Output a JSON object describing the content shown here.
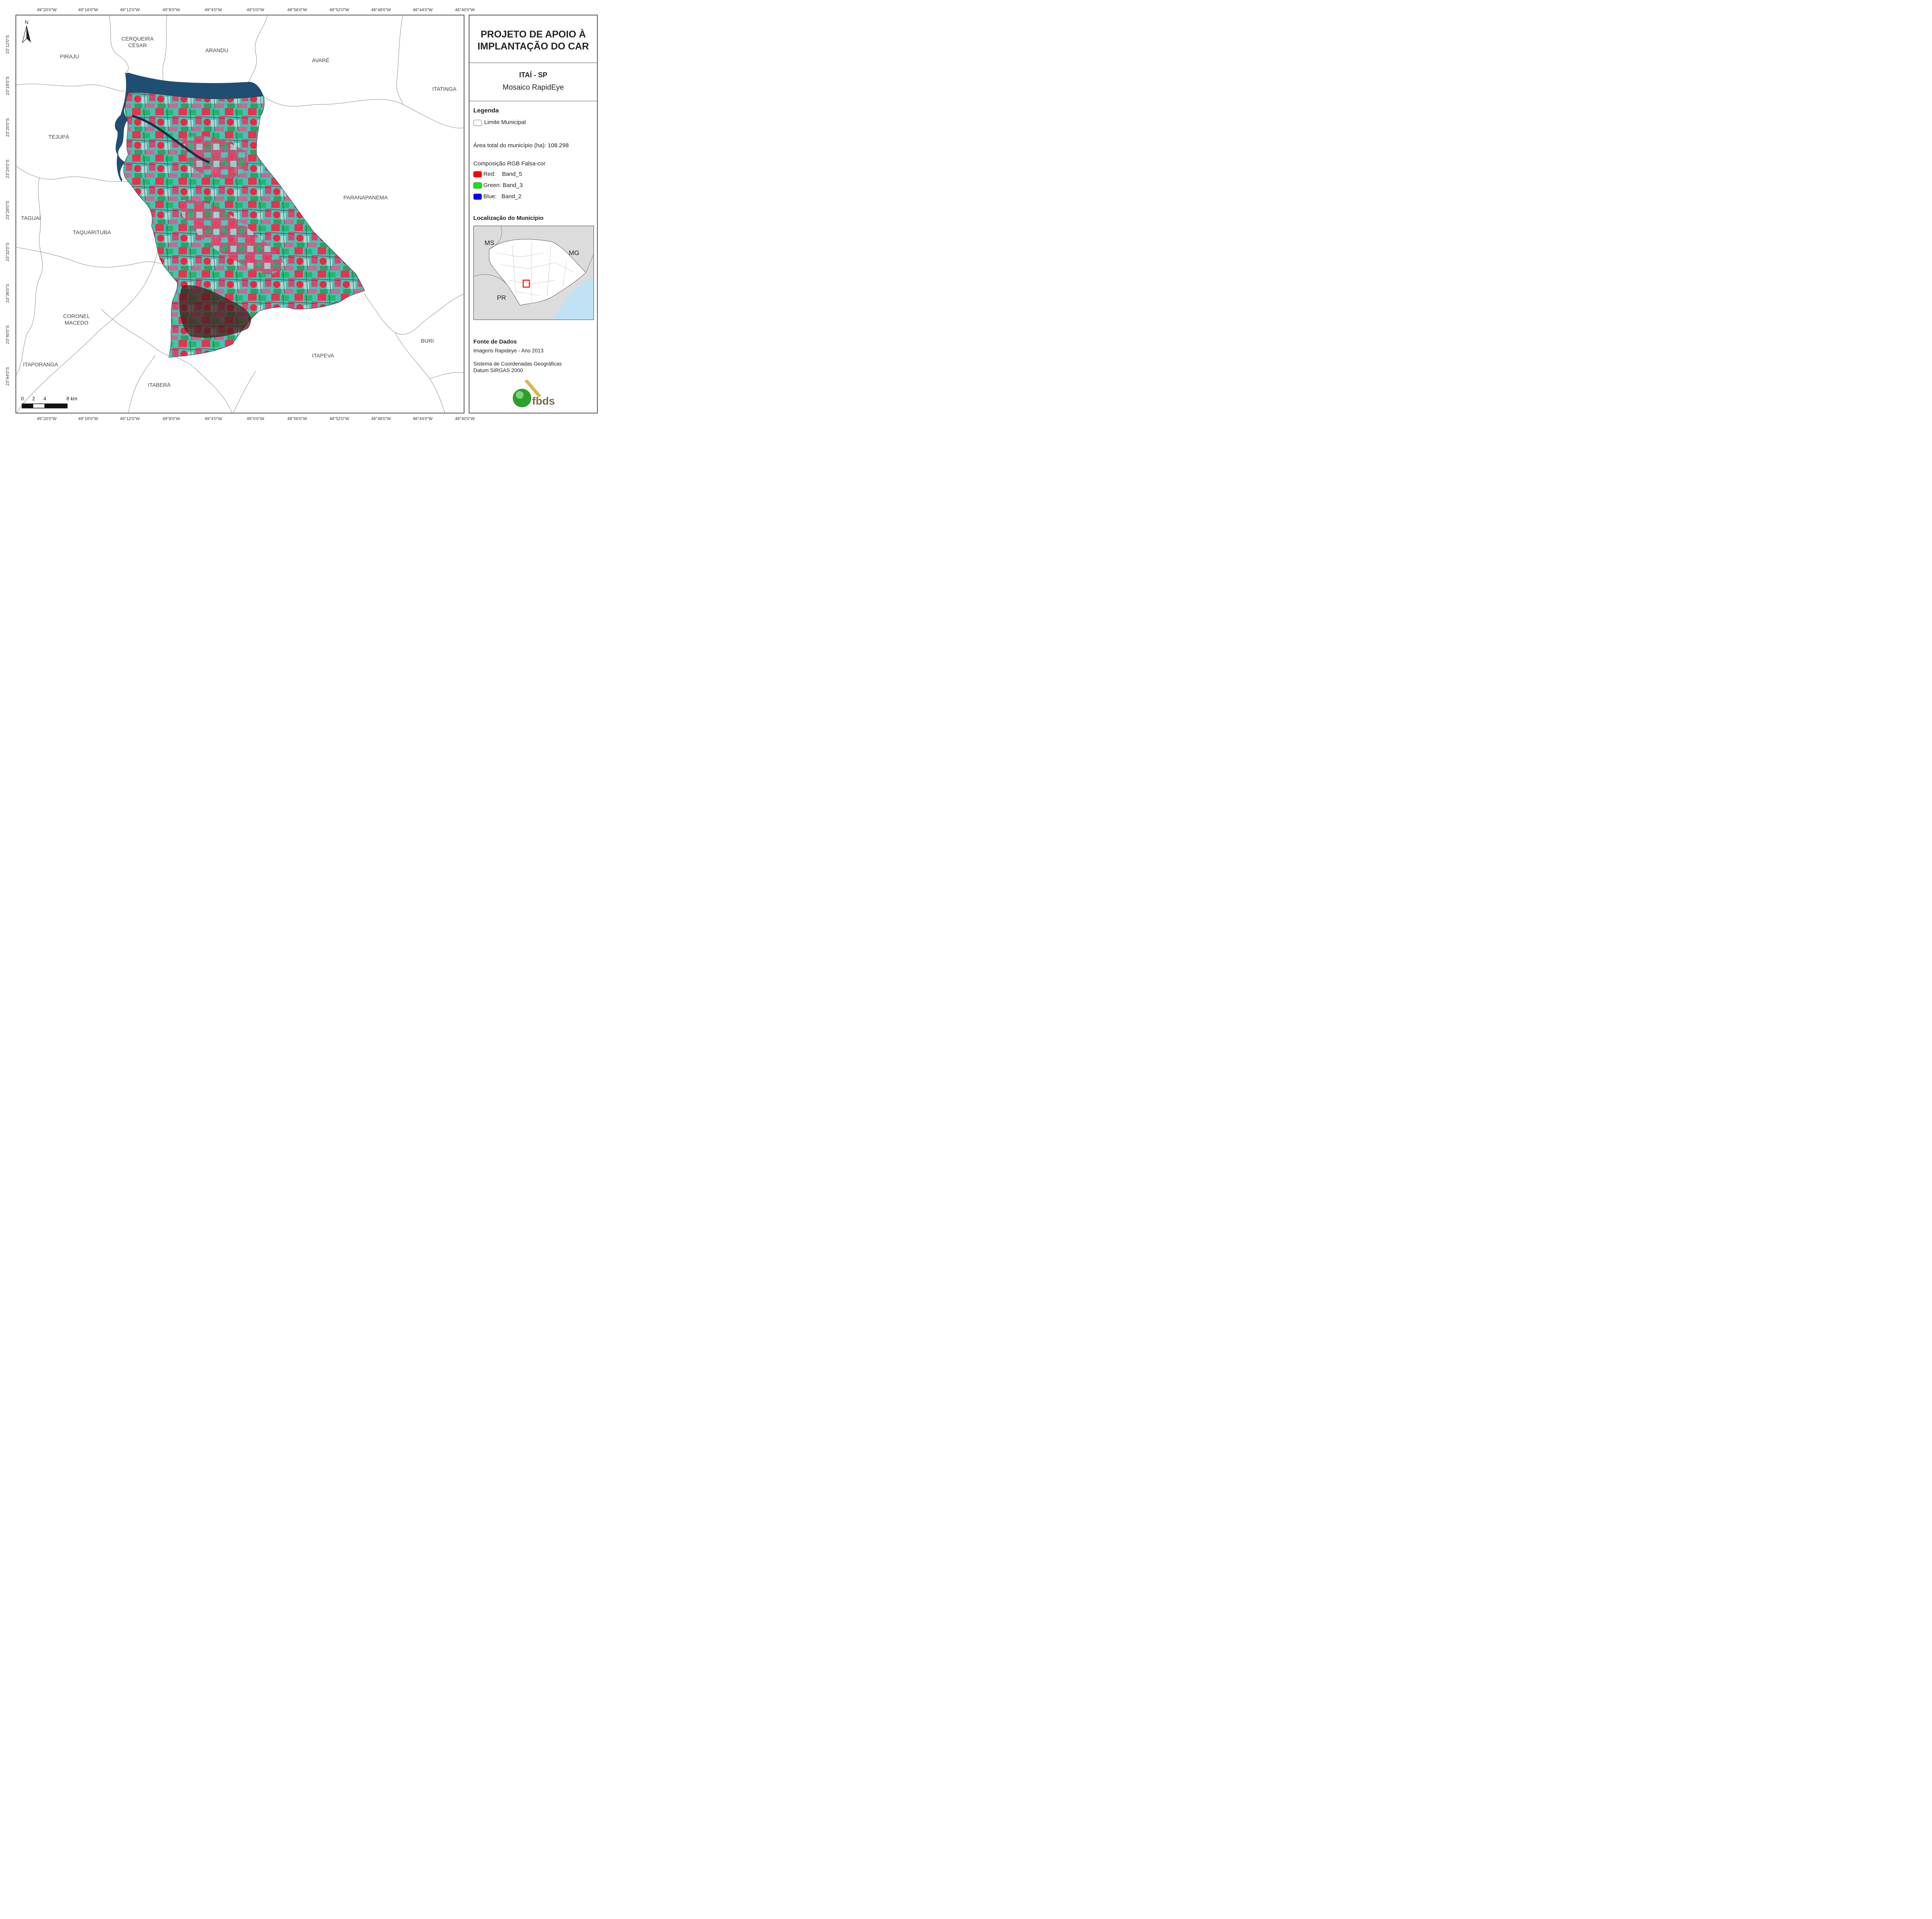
{
  "grid": {
    "longitudes": [
      "49°20'0\"W",
      "49°16'0\"W",
      "49°12'0\"W",
      "49°8'0\"W",
      "49°4'0\"W",
      "49°0'0\"W",
      "48°56'0\"W",
      "48°52'0\"W",
      "48°48'0\"W",
      "48°44'0\"W",
      "48°40'0\"W"
    ],
    "latitudes": [
      "23°12'0\"S",
      "23°16'0\"S",
      "23°20'0\"S",
      "23°24'0\"S",
      "23°28'0\"S",
      "23°32'0\"S",
      "23°36'0\"S",
      "23°40'0\"S",
      "23°44'0\"S"
    ]
  },
  "municipalities": {
    "cerqueira": "CERQUEIRA",
    "cesar": "CÉSAR",
    "piraju": "PIRAJU",
    "arandu": "ARANDU",
    "avare": "AVARÉ",
    "itatinga": "ITATINGA",
    "tejupa": "TEJUPÁ",
    "paranapanema": "PARANAPANEMA",
    "taguai": "TAGUAÍ",
    "taquarituba": "TAQUARITUBA",
    "coronel": "CORONEL",
    "macedo": "MACEDO",
    "buri": "BURI",
    "itapeva": "ITAPEVA",
    "itaporanga": "ITAPORANGA",
    "itabera": "ITABERÁ"
  },
  "north_arrow": "N",
  "scale": {
    "labels": [
      "0",
      "2",
      "4",
      "8 km"
    ]
  },
  "panel": {
    "title_line1": "PROJETO DE APOIO À",
    "title_line2": "IMPLANTAÇÃO DO CAR",
    "city": "ITAÍ - SP",
    "mosaic": "Mosaico RapidEye",
    "legend_title": "Legenda",
    "limit_label": "Limite Municipal",
    "area_text": "Área total do município (ha): 108.298",
    "rgb_title": "Composição RGB Falsa-cor",
    "bands": [
      {
        "label": "Red:    Band_5",
        "color": "#ff0000"
      },
      {
        "label": "Green: Band_3",
        "color": "#00ee00"
      },
      {
        "label": "Blue:   Band_2",
        "color": "#0000ff"
      }
    ],
    "location_title": "Localização do Município",
    "states": {
      "ms": "MS",
      "mg": "MG",
      "pr": "PR"
    },
    "source_title": "Fonte de Dados",
    "source_lines": [
      "Imagens Rapideye - Ano 2013",
      "Sistema de Coordenadas Geográficas",
      "Datum SIRGAS 2000"
    ],
    "logo_text": "fbds"
  },
  "colors": {
    "highlight": "#ff0000",
    "water": "#bfe3f5",
    "reservoir": "#1e4f73"
  }
}
